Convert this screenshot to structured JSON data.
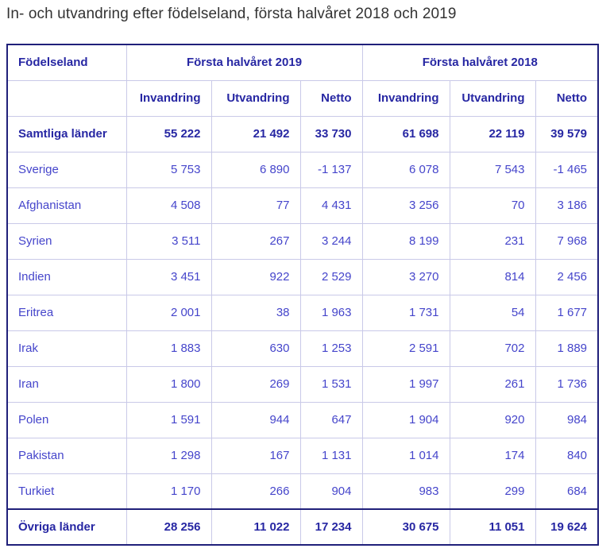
{
  "title": "In- och utvandring efter födelseland, första halvåret 2018 och 2019",
  "colors": {
    "table_border_dark": "#20207a",
    "table_border_light": "#c9c9e8",
    "text_emphasis": "#2727a3",
    "text_regular": "#4545cb",
    "title_text": "#333333",
    "page_bg": "#ffffff"
  },
  "chart_data": {
    "type": "table",
    "title": "In- och utvandring efter födelseland, första halvåret 2018 och 2019",
    "corner_header": "Födelseland",
    "column_groups": [
      "Första halvåret 2019",
      "Första halvåret 2018"
    ],
    "sub_columns": [
      "Invandring",
      "Utvandring",
      "Netto"
    ],
    "rows": [
      {
        "label": "Samtliga länder",
        "emphasis": true,
        "values": [
          55222,
          21492,
          33730,
          61698,
          22119,
          39579
        ]
      },
      {
        "label": "Sverige",
        "emphasis": false,
        "values": [
          5753,
          6890,
          -1137,
          6078,
          7543,
          -1465
        ]
      },
      {
        "label": "Afghanistan",
        "emphasis": false,
        "values": [
          4508,
          77,
          4431,
          3256,
          70,
          3186
        ]
      },
      {
        "label": "Syrien",
        "emphasis": false,
        "values": [
          3511,
          267,
          3244,
          8199,
          231,
          7968
        ]
      },
      {
        "label": "Indien",
        "emphasis": false,
        "values": [
          3451,
          922,
          2529,
          3270,
          814,
          2456
        ]
      },
      {
        "label": "Eritrea",
        "emphasis": false,
        "values": [
          2001,
          38,
          1963,
          1731,
          54,
          1677
        ]
      },
      {
        "label": "Irak",
        "emphasis": false,
        "values": [
          1883,
          630,
          1253,
          2591,
          702,
          1889
        ]
      },
      {
        "label": "Iran",
        "emphasis": false,
        "values": [
          1800,
          269,
          1531,
          1997,
          261,
          1736
        ]
      },
      {
        "label": "Polen",
        "emphasis": false,
        "values": [
          1591,
          944,
          647,
          1904,
          920,
          984
        ]
      },
      {
        "label": "Pakistan",
        "emphasis": false,
        "values": [
          1298,
          167,
          1131,
          1014,
          174,
          840
        ]
      },
      {
        "label": "Turkiet",
        "emphasis": false,
        "values": [
          1170,
          266,
          904,
          983,
          299,
          684
        ]
      },
      {
        "label": "Övriga länder",
        "emphasis": true,
        "values": [
          28256,
          11022,
          17234,
          30675,
          11051,
          19624
        ]
      }
    ]
  }
}
